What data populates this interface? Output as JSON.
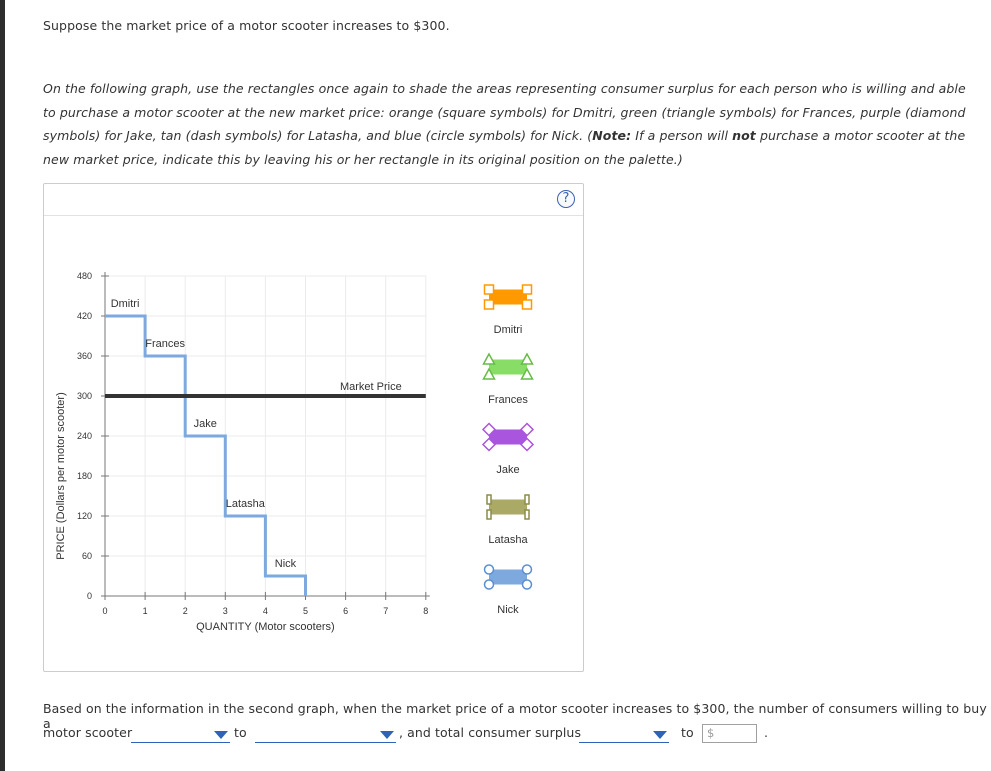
{
  "intro": "Suppose the market price of a motor scooter increases to $300.",
  "instructions": {
    "part1": "On the following graph, use the rectangles once again to shade the areas representing consumer surplus for each person who is willing and able to purchase a motor scooter at the new market price: orange (square symbols) for Dmitri, green (triangle symbols) for Frances, purple (diamond symbols) for Jake, tan (dash symbols) for Latasha, and blue (circle symbols) for Nick. (",
    "note_label": "Note:",
    "part2": " If a person will ",
    "not_word": "not",
    "part3": " purchase a motor scooter at the new market price, indicate this by leaving his or her rectangle in its original position on the palette.)"
  },
  "help_icon": "?",
  "chart_data": {
    "type": "step",
    "xlabel": "QUANTITY (Motor scooters)",
    "ylabel": "PRICE (Dollars per motor scooter)",
    "xlim": [
      0,
      8
    ],
    "ylim": [
      0,
      480
    ],
    "xticks": [
      0,
      1,
      2,
      3,
      4,
      5,
      6,
      7,
      8
    ],
    "yticks": [
      0,
      60,
      120,
      180,
      240,
      300,
      360,
      420,
      480
    ],
    "demand_steps": [
      {
        "name": "Dmitri",
        "x0": 0,
        "x1": 1,
        "price": 420
      },
      {
        "name": "Frances",
        "x0": 1,
        "x1": 2,
        "price": 360
      },
      {
        "name": "Jake",
        "x0": 2,
        "x1": 3,
        "price": 240
      },
      {
        "name": "Latasha",
        "x0": 3,
        "x1": 4,
        "price": 120
      },
      {
        "name": "Nick",
        "x0": 4,
        "x1": 5,
        "price": 30
      }
    ],
    "market_price": {
      "label": "Market Price",
      "value": 300
    },
    "demand_color": "#7ea9de",
    "market_price_color": "#333333"
  },
  "palette": [
    {
      "name": "Dmitri",
      "color": "#ff9900",
      "symbol": "square",
      "symbol_color": "#ff9900"
    },
    {
      "name": "Frances",
      "color": "#88dd66",
      "symbol": "triangle",
      "symbol_color": "#66bb44"
    },
    {
      "name": "Jake",
      "color": "#aa55dd",
      "symbol": "diamond",
      "symbol_color": "#aa55dd"
    },
    {
      "name": "Latasha",
      "color": "#aaaa66",
      "symbol": "dash",
      "symbol_color": "#8c8c4a"
    },
    {
      "name": "Nick",
      "color": "#7ea9de",
      "symbol": "circle",
      "symbol_color": "#5b8fd0"
    }
  ],
  "bottom": {
    "sentence_start": "Based on the information in the second graph, when the market price of a motor scooter increases to $300, the number of consumers willing to buy a",
    "motor_scooter": "motor scooter",
    "to1": "to",
    "and_total": ", and total consumer surplus",
    "to2": "to",
    "currency": "$",
    "period": "."
  }
}
